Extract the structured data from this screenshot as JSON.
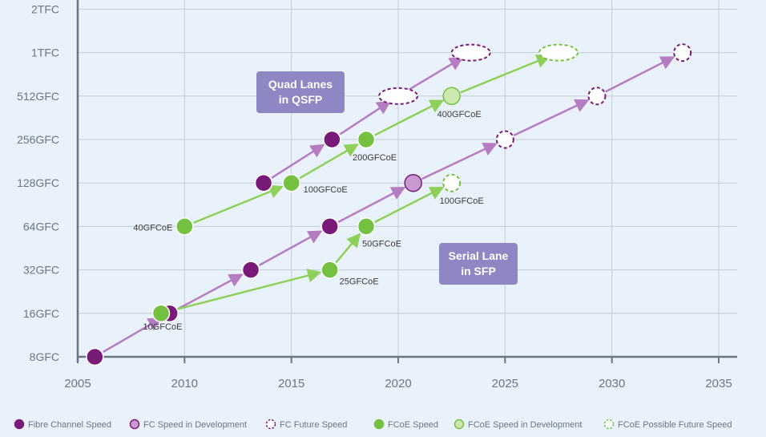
{
  "chart_data": {
    "type": "scatter",
    "xlim": [
      2005,
      2035
    ],
    "xticks": [
      "2005",
      "2010",
      "2015",
      "2020",
      "2025",
      "2030",
      "2035"
    ],
    "yticks": [
      "8GFC",
      "16GFC",
      "32GFC",
      "64GFC",
      "128GFC",
      "256GFC",
      "512GFC",
      "1TFC",
      "2TFC"
    ],
    "grid": true,
    "legend_position": "bottom",
    "colors": {
      "fc": "#7a1a78",
      "fc_dev": "#c89ad0",
      "fc_line": "#b57cc1",
      "fcoe": "#74c142",
      "fcoe_dev": "#cfe8b0",
      "fcoe_line": "#8fd05a",
      "annotation": "#8e87c3"
    },
    "series": [
      {
        "name": "Fibre Channel Speed",
        "points": [
          {
            "x": 2005.8,
            "y": "8GFC"
          },
          {
            "x": 2009.3,
            "y": "16GFC"
          },
          {
            "x": 2013.1,
            "y": "32GFC"
          },
          {
            "x": 2016.8,
            "y": "64GFC"
          },
          {
            "x": 2013.7,
            "y": "128GFC"
          },
          {
            "x": 2016.9,
            "y": "256GFC"
          }
        ]
      },
      {
        "name": "FC Speed in Development",
        "points": [
          {
            "x": 2020.7,
            "y": "128GFC"
          }
        ]
      },
      {
        "name": "FC Future Speed",
        "points": [
          {
            "x": 2025.0,
            "y": "256GFC"
          },
          {
            "x": 2029.3,
            "y": "512GFC"
          },
          {
            "x": 2033.3,
            "y": "1TFC"
          },
          {
            "x": 2020.0,
            "y": "512GFC"
          },
          {
            "x": 2023.4,
            "y": "1TFC"
          }
        ]
      },
      {
        "name": "FCoE Speed",
        "points": [
          {
            "x": 2008.9,
            "y": "16GFC",
            "label": "10GFCoE"
          },
          {
            "x": 2010.0,
            "y": "64GFC",
            "label": "40GFCoE"
          },
          {
            "x": 2016.8,
            "y": "32GFC",
            "label": "25GFCoE"
          },
          {
            "x": 2018.5,
            "y": "64GFC",
            "label": "50GFCoE"
          },
          {
            "x": 2015.0,
            "y": "128GFC",
            "label": "100GFCoE"
          },
          {
            "x": 2018.5,
            "y": "256GFC",
            "label": "200GFCoE"
          }
        ]
      },
      {
        "name": "FCoE Speed in Development",
        "points": [
          {
            "x": 2022.5,
            "y": "512GFC",
            "label": "400GFCoE"
          }
        ]
      },
      {
        "name": "FCoE Possible Future Speed",
        "points": [
          {
            "x": 2022.5,
            "y": "128GFC",
            "label": "100GFCoE"
          },
          {
            "x": 2027.5,
            "y": "1TFC"
          }
        ]
      }
    ],
    "annotations": [
      {
        "text_lines": [
          "Quad Lanes",
          "in QSFP"
        ]
      },
      {
        "text_lines": [
          "Serial Lane",
          "in SFP"
        ]
      }
    ]
  }
}
